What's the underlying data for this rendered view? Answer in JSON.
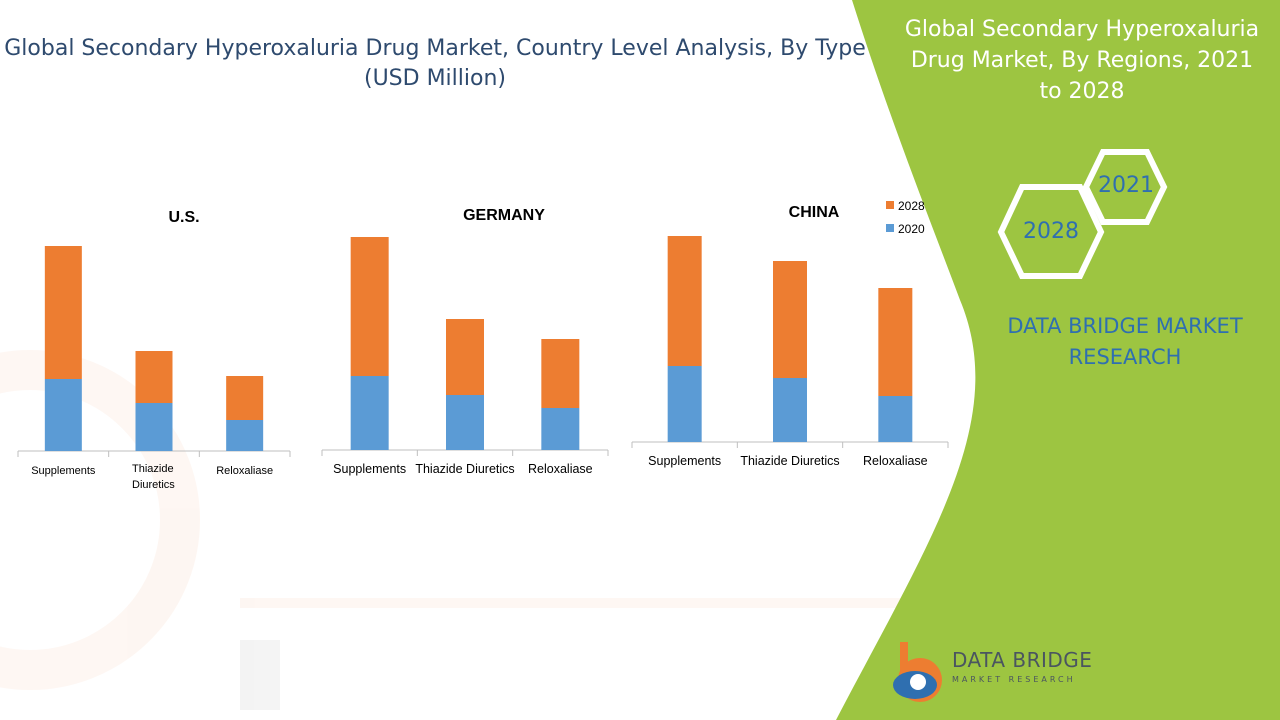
{
  "title": "Global Secondary Hyperoxaluria Drug Market, Country Level Analysis, By Type (USD Million)",
  "side_panel": {
    "title": "Global Secondary Hyperoxaluria Drug Market, By Regions, 2021 to 2028",
    "hex_2021": "2021",
    "hex_2028": "2028",
    "brand": "DATA BRIDGE MARKET RESEARCH"
  },
  "logo": {
    "main": "DATA BRIDGE",
    "sub": "MARKET RESEARCH"
  },
  "colors": {
    "series_2028": "#ed7d31",
    "series_2020": "#5b9bd5",
    "panel_green": "#9dc541",
    "title_blue": "#2e4a6e",
    "brand_blue": "#2f6fb0"
  },
  "chart_data": [
    {
      "type": "bar",
      "stacked": true,
      "title": "U.S.",
      "categories": [
        "Supplements",
        "Thiazide Diuretics",
        "Reloxaliase"
      ],
      "series": [
        {
          "name": "2020",
          "values": [
            72,
            48,
            31
          ]
        },
        {
          "name": "2028",
          "values": [
            133,
            52,
            44
          ]
        }
      ]
    },
    {
      "type": "bar",
      "stacked": true,
      "title": "GERMANY",
      "categories": [
        "Supplements",
        "Thiazide Diuretics",
        "Reloxaliase"
      ],
      "series": [
        {
          "name": "2020",
          "values": [
            74,
            55,
            42
          ]
        },
        {
          "name": "2028",
          "values": [
            139,
            76,
            69
          ]
        }
      ]
    },
    {
      "type": "bar",
      "stacked": true,
      "title": "CHINA",
      "legend": "top-right",
      "categories": [
        "Supplements",
        "Thiazide Diuretics",
        "Reloxaliase"
      ],
      "series": [
        {
          "name": "2020",
          "values": [
            76,
            64,
            46
          ]
        },
        {
          "name": "2028",
          "values": [
            130,
            117,
            108
          ]
        }
      ]
    }
  ]
}
